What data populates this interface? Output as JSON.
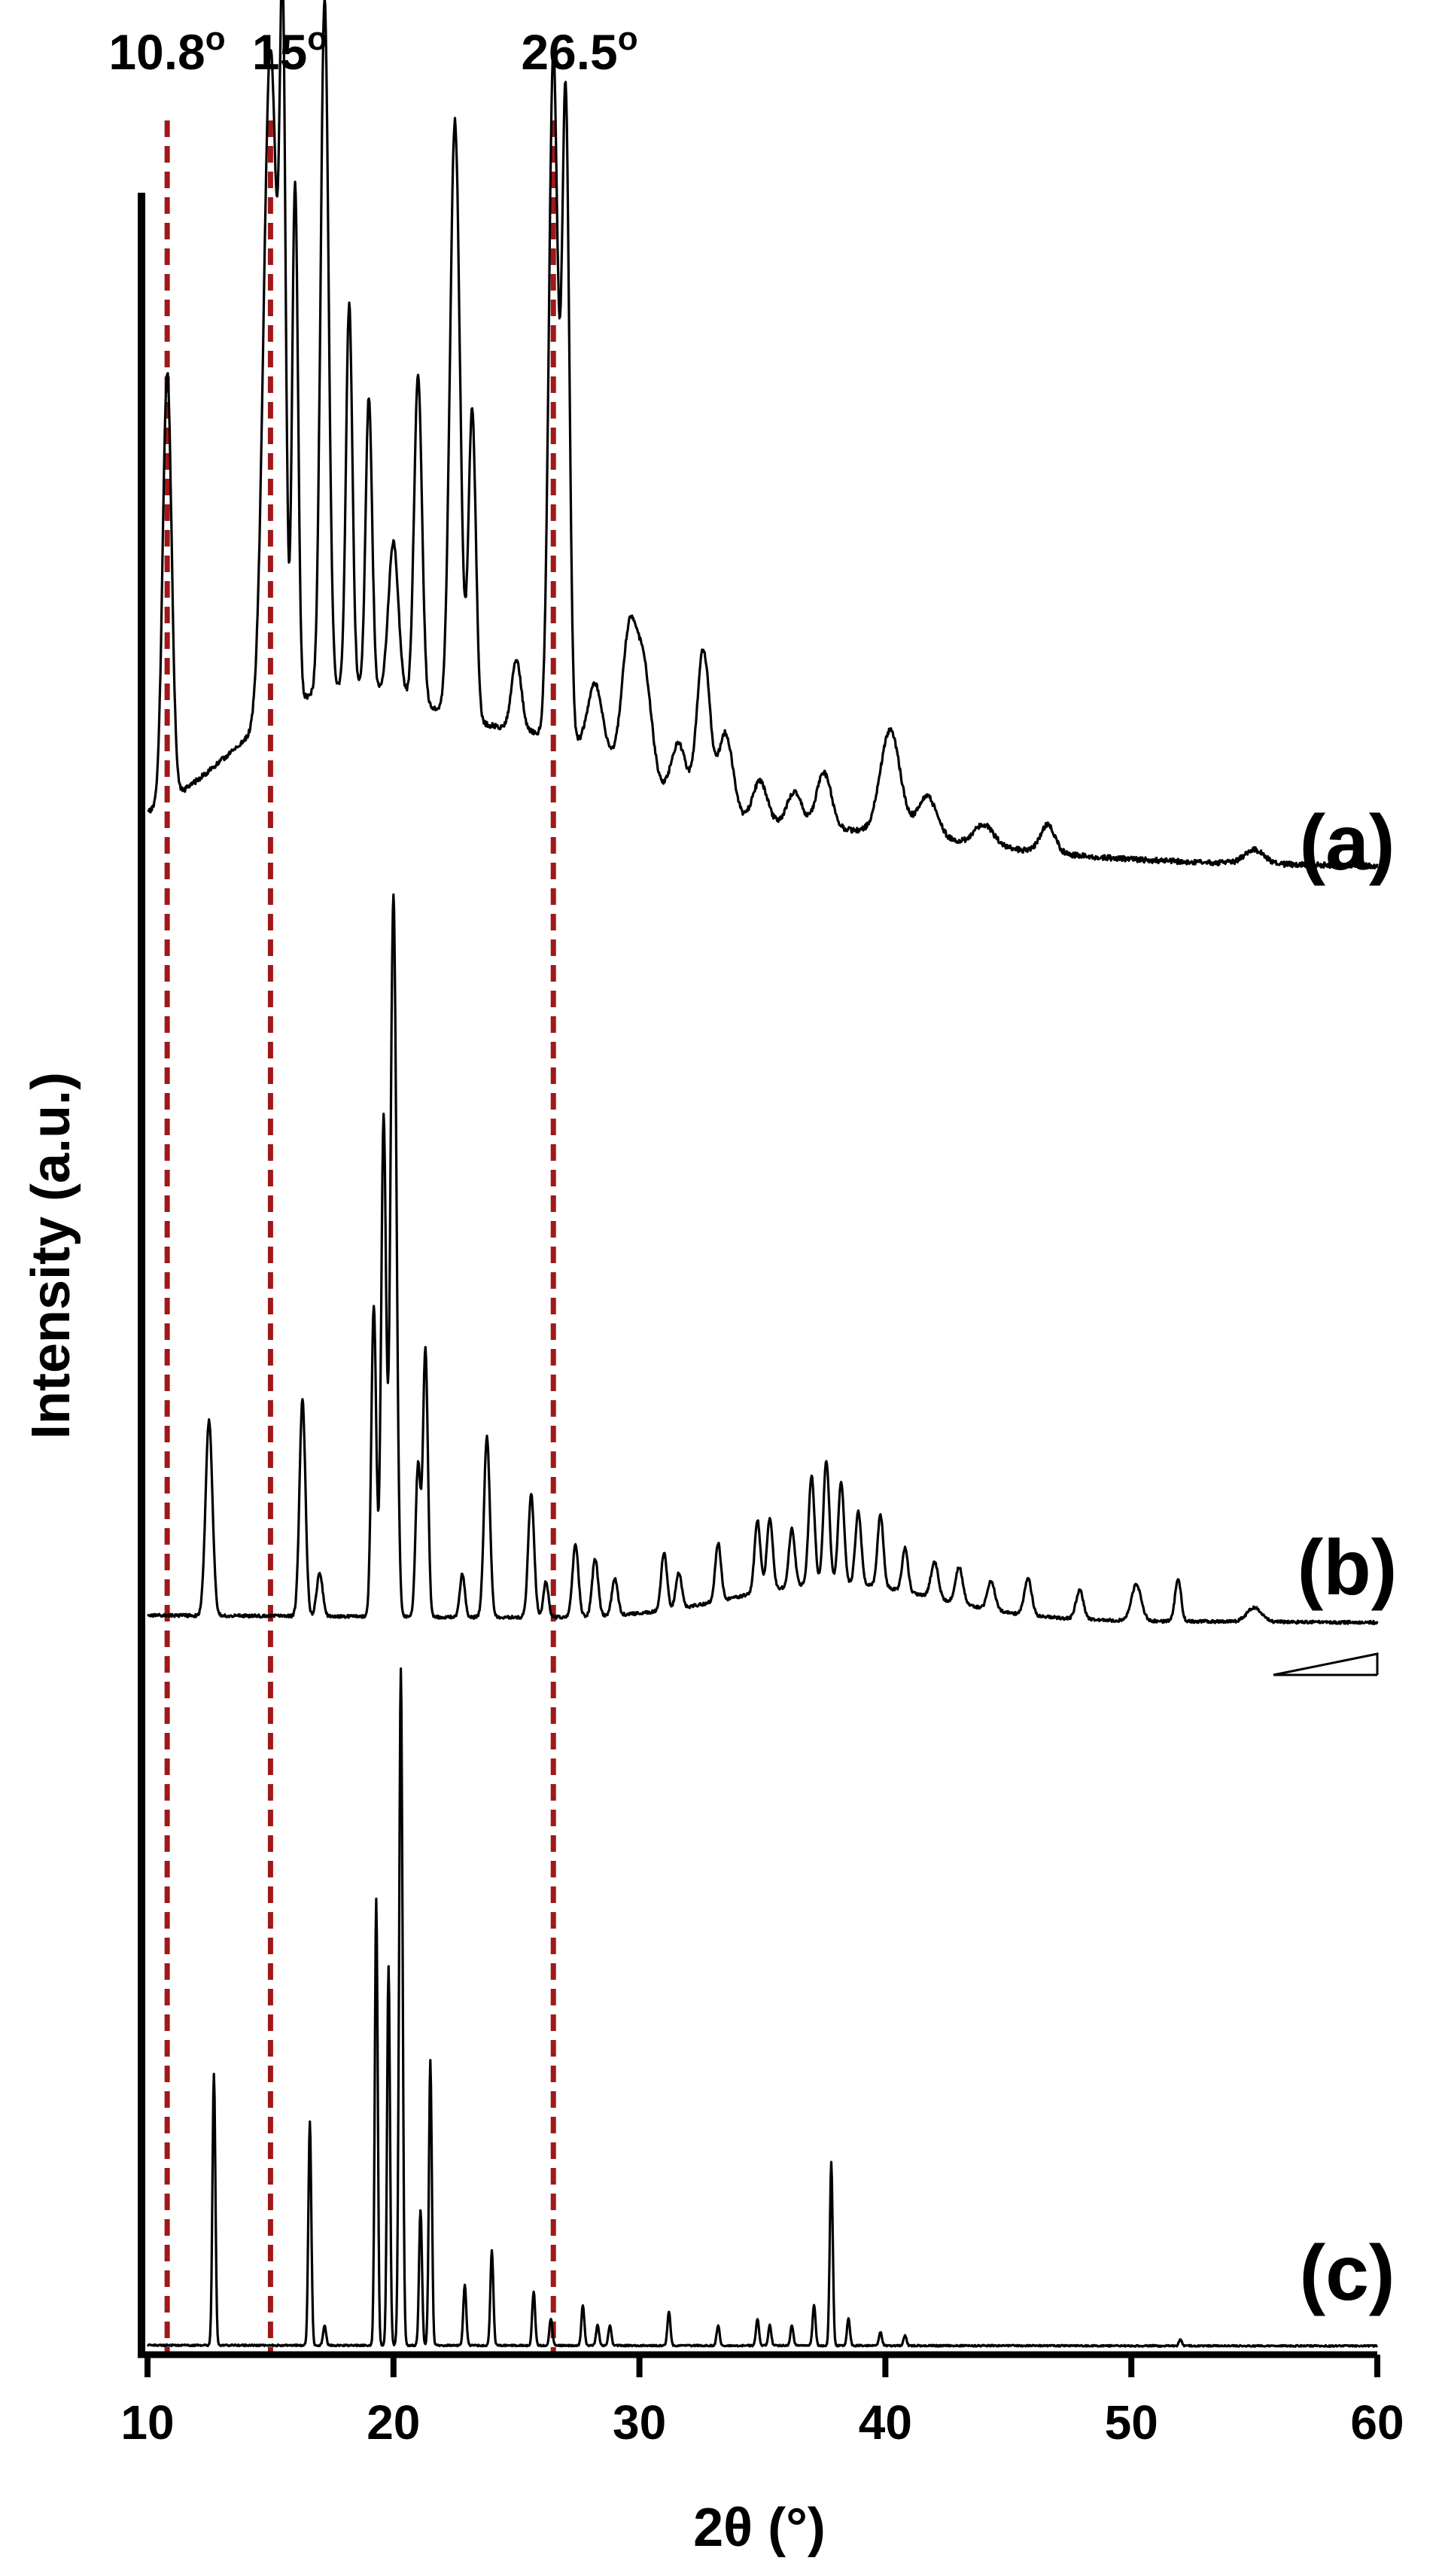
{
  "chart_data": {
    "type": "line",
    "xlabel": "2θ (°)",
    "ylabel": "Intensity (a.u.)",
    "xlim": [
      10,
      60
    ],
    "x_ticks": [
      "10",
      "20",
      "30",
      "40",
      "50",
      "60"
    ],
    "y_ticks": [],
    "grid": false,
    "reference_lines": [
      {
        "x": 10.8,
        "label": "10.8",
        "superscript": "o",
        "color": "#a01818"
      },
      {
        "x": 15,
        "label": "15",
        "superscript": "o",
        "color": "#a01818"
      },
      {
        "x": 26.5,
        "label": "26.5",
        "superscript": "o",
        "color": "#a01818"
      }
    ],
    "series": [
      {
        "label": "(a)",
        "baseline_start": 0.06,
        "baseline_end": 0.03,
        "amorphous_humps": [
          [
            18,
            0.23,
            4.5
          ],
          [
            27,
            0.12,
            3.5
          ],
          [
            37,
            0.04,
            6
          ]
        ],
        "peaks": [
          [
            10.8,
            0.62,
            0.18
          ],
          [
            15.0,
            0.97,
            0.28
          ],
          [
            15.5,
            0.87,
            0.12
          ],
          [
            16.0,
            0.75,
            0.12
          ],
          [
            17.2,
            1.0,
            0.16
          ],
          [
            18.2,
            0.55,
            0.13
          ],
          [
            19.0,
            0.42,
            0.13
          ],
          [
            20.0,
            0.22,
            0.2
          ],
          [
            21.0,
            0.47,
            0.16
          ],
          [
            22.5,
            0.86,
            0.2
          ],
          [
            23.2,
            0.45,
            0.15
          ],
          [
            25.0,
            0.1,
            0.2
          ],
          [
            26.5,
            0.99,
            0.18
          ],
          [
            27.0,
            0.93,
            0.15
          ],
          [
            28.2,
            0.1,
            0.3
          ],
          [
            29.6,
            0.2,
            0.3
          ],
          [
            30.2,
            0.15,
            0.3
          ],
          [
            31.6,
            0.08,
            0.3
          ],
          [
            32.6,
            0.23,
            0.26
          ],
          [
            33.5,
            0.12,
            0.3
          ],
          [
            34.9,
            0.06,
            0.3
          ],
          [
            36.3,
            0.05,
            0.3
          ],
          [
            37.5,
            0.08,
            0.3
          ],
          [
            40.2,
            0.15,
            0.4
          ],
          [
            41.7,
            0.06,
            0.4
          ],
          [
            44.0,
            0.03,
            0.4
          ],
          [
            46.6,
            0.04,
            0.3
          ],
          [
            55.0,
            0.02,
            0.4
          ]
        ]
      },
      {
        "label": "(b)",
        "baseline_start": 0.02,
        "baseline_end": 0.01,
        "amorphous_humps": [
          [
            38,
            0.05,
            4
          ]
        ],
        "peaks": [
          [
            12.5,
            0.27,
            0.14
          ],
          [
            16.3,
            0.3,
            0.12
          ],
          [
            17.0,
            0.06,
            0.12
          ],
          [
            19.2,
            0.43,
            0.1
          ],
          [
            19.6,
            0.69,
            0.1
          ],
          [
            20.0,
            1.0,
            0.12
          ],
          [
            21.0,
            0.21,
            0.1
          ],
          [
            21.3,
            0.37,
            0.1
          ],
          [
            22.8,
            0.06,
            0.1
          ],
          [
            23.8,
            0.25,
            0.12
          ],
          [
            25.6,
            0.17,
            0.12
          ],
          [
            26.2,
            0.05,
            0.1
          ],
          [
            27.4,
            0.1,
            0.12
          ],
          [
            28.2,
            0.08,
            0.12
          ],
          [
            29.0,
            0.05,
            0.12
          ],
          [
            31.0,
            0.08,
            0.12
          ],
          [
            31.6,
            0.05,
            0.12
          ],
          [
            33.2,
            0.08,
            0.12
          ],
          [
            34.8,
            0.1,
            0.12
          ],
          [
            35.3,
            0.1,
            0.12
          ],
          [
            36.2,
            0.08,
            0.12
          ],
          [
            37.0,
            0.15,
            0.12
          ],
          [
            37.6,
            0.17,
            0.12
          ],
          [
            38.2,
            0.14,
            0.12
          ],
          [
            38.9,
            0.1,
            0.12
          ],
          [
            39.8,
            0.1,
            0.12
          ],
          [
            40.8,
            0.06,
            0.12
          ],
          [
            42.0,
            0.05,
            0.15
          ],
          [
            43.0,
            0.05,
            0.15
          ],
          [
            44.3,
            0.04,
            0.15
          ],
          [
            45.8,
            0.05,
            0.15
          ],
          [
            47.9,
            0.04,
            0.15
          ],
          [
            50.2,
            0.05,
            0.2
          ],
          [
            51.9,
            0.06,
            0.12
          ],
          [
            55.0,
            0.02,
            0.3
          ]
        ]
      },
      {
        "label": "(c)",
        "baseline_start": 0.005,
        "baseline_end": 0.004,
        "amorphous_humps": [],
        "peaks": [
          [
            12.7,
            0.4,
            0.06
          ],
          [
            16.6,
            0.33,
            0.06
          ],
          [
            17.2,
            0.03,
            0.06
          ],
          [
            19.3,
            0.66,
            0.06
          ],
          [
            19.8,
            0.56,
            0.06
          ],
          [
            20.3,
            1.0,
            0.07
          ],
          [
            21.1,
            0.2,
            0.06
          ],
          [
            21.5,
            0.42,
            0.06
          ],
          [
            22.9,
            0.09,
            0.06
          ],
          [
            24.0,
            0.14,
            0.06
          ],
          [
            25.7,
            0.08,
            0.06
          ],
          [
            26.4,
            0.04,
            0.06
          ],
          [
            27.7,
            0.06,
            0.06
          ],
          [
            28.3,
            0.03,
            0.06
          ],
          [
            28.8,
            0.03,
            0.06
          ],
          [
            31.2,
            0.05,
            0.06
          ],
          [
            33.2,
            0.03,
            0.06
          ],
          [
            34.8,
            0.04,
            0.06
          ],
          [
            35.3,
            0.03,
            0.06
          ],
          [
            36.2,
            0.03,
            0.06
          ],
          [
            37.1,
            0.06,
            0.06
          ],
          [
            37.8,
            0.27,
            0.06
          ],
          [
            38.5,
            0.04,
            0.06
          ],
          [
            39.8,
            0.02,
            0.06
          ],
          [
            40.8,
            0.015,
            0.06
          ],
          [
            52.0,
            0.01,
            0.06
          ]
        ]
      }
    ]
  }
}
